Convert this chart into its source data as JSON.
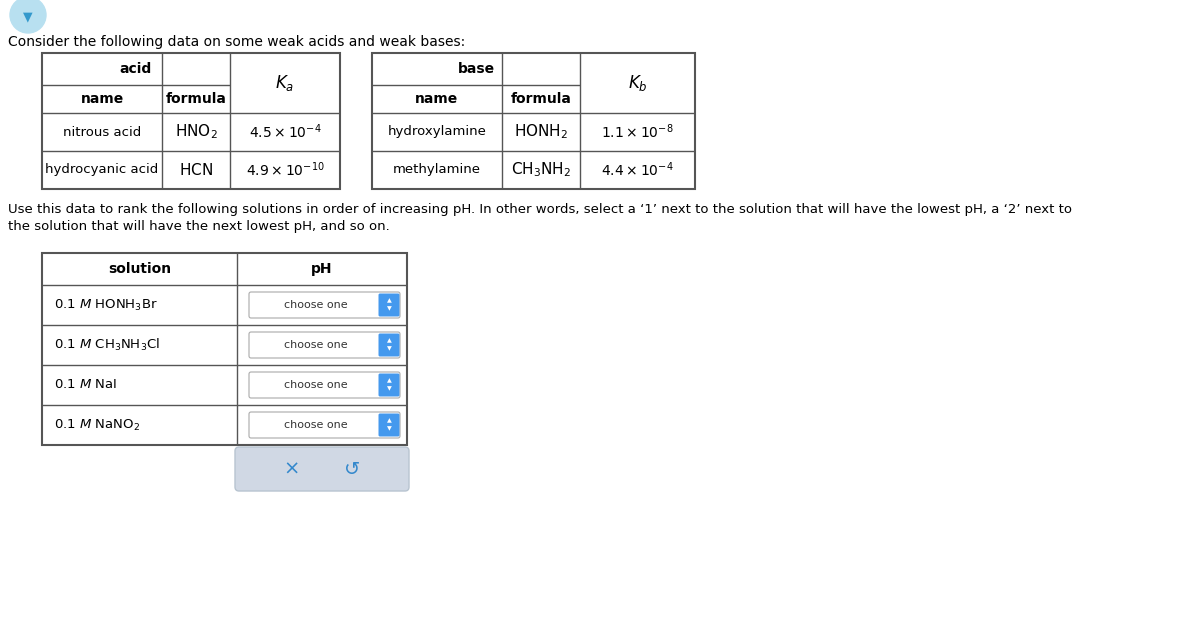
{
  "bg_color": "#ffffff",
  "header_text": "Consider the following data on some weak acids and weak bases:",
  "instruction_line1": "Use this data to rank the following solutions in order of increasing pH. In other words, select a ‘1’ next to the solution that will have the lowest pH, a ‘2’ next to",
  "instruction_line2": "the solution that will have the next lowest pH, and so on.",
  "acid_title": "acid",
  "acid_name_header": "name",
  "acid_formula_header": "formula",
  "ka_label": "K_a",
  "acid_rows": [
    [
      "nitrous acid",
      "HNO_2",
      "4.5 \\times 10^{-4}"
    ],
    [
      "hydrocyanic acid",
      "HCN",
      "4.9 \\times 10^{-10}"
    ]
  ],
  "base_title": "base",
  "base_name_header": "name",
  "base_formula_header": "formula",
  "kb_label": "K_b",
  "base_rows": [
    [
      "hydroxylamine",
      "HONH_2",
      "1.1 \\times 10^{-8}"
    ],
    [
      "methylamine",
      "CH_3NH_2",
      "4.4 \\times 10^{-4}"
    ]
  ],
  "sol_header1": "solution",
  "sol_header2": "pH",
  "solutions": [
    "0.1 M HONH_3Br",
    "0.1 M CH_3NH_3Cl",
    "0.1 M NaI",
    "0.1 M NaNO_2"
  ],
  "choose_text": "choose one",
  "border_color": "#555555",
  "spinner_color": "#4499ee",
  "btn_bg": "#d0d8e4",
  "btn_border": "#b8c4d0",
  "icon_color": "#3388cc"
}
